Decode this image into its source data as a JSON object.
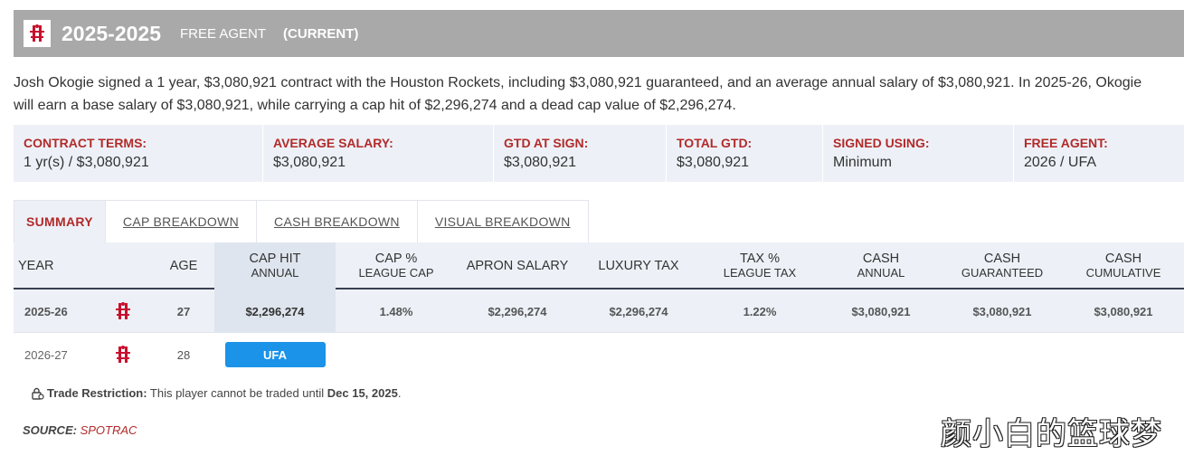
{
  "header": {
    "season": "2025-2025",
    "status": "FREE AGENT",
    "current": "(CURRENT)"
  },
  "description": {
    "line1": "Josh Okogie signed a 1 year, $3,080,921 contract with the Houston Rockets, including $3,080,921 guaranteed, and an average annual salary of $3,080,921. In 2025-26, Okogie",
    "line2": "will earn a base salary of $3,080,921, while carrying a cap hit of $2,296,274 and a dead cap value of $2,296,274."
  },
  "terms": [
    {
      "label": "CONTRACT TERMS:",
      "value": "1 yr(s) / $3,080,921"
    },
    {
      "label": "AVERAGE SALARY:",
      "value": "$3,080,921"
    },
    {
      "label": "GTD AT SIGN:",
      "value": "$3,080,921"
    },
    {
      "label": "TOTAL GTD:",
      "value": "$3,080,921"
    },
    {
      "label": "SIGNED USING:",
      "value": "Minimum"
    },
    {
      "label": "FREE AGENT:",
      "value": "2026 / UFA"
    }
  ],
  "tabs": [
    "SUMMARY",
    "CAP BREAKDOWN",
    "CASH BREAKDOWN",
    "VISUAL BREAKDOWN"
  ],
  "columns": [
    {
      "l1": "YEAR",
      "l2": ""
    },
    {
      "l1": "AGE",
      "l2": ""
    },
    {
      "l1": "CAP HIT",
      "l2": "ANNUAL"
    },
    {
      "l1": "CAP %",
      "l2": "LEAGUE CAP"
    },
    {
      "l1": "APRON SALARY",
      "l2": ""
    },
    {
      "l1": "LUXURY TAX",
      "l2": ""
    },
    {
      "l1": "TAX %",
      "l2": "LEAGUE TAX"
    },
    {
      "l1": "CASH",
      "l2": "ANNUAL"
    },
    {
      "l1": "CASH",
      "l2": "GUARANTEED"
    },
    {
      "l1": "CASH",
      "l2": "CUMULATIVE"
    }
  ],
  "rows": [
    {
      "year": "2025-26",
      "age": "27",
      "cap_hit": "$2,296,274",
      "cap_pct": "1.48%",
      "apron": "$2,296,274",
      "luxury_tax": "$2,296,274",
      "tax_pct": "1.22%",
      "cash_annual": "$3,080,921",
      "cash_guaranteed": "$3,080,921",
      "cash_cumulative": "$3,080,921"
    },
    {
      "year": "2026-27",
      "age": "28",
      "badge": "UFA"
    }
  ],
  "trade_restriction": {
    "label": "Trade Restriction:",
    "text": " This player cannot be traded until ",
    "date": "Dec 15, 2025",
    "end": "."
  },
  "source": {
    "label": "SOURCE:",
    "value": "SPOTRAC"
  },
  "watermark": "颜小白的篮球梦",
  "colors": {
    "accent_red": "#b22a2a",
    "badge_blue": "#1a93e8",
    "header_gray": "#a9a9a9"
  },
  "icons": [
    "rockets-logo-icon",
    "lock-icon"
  ]
}
